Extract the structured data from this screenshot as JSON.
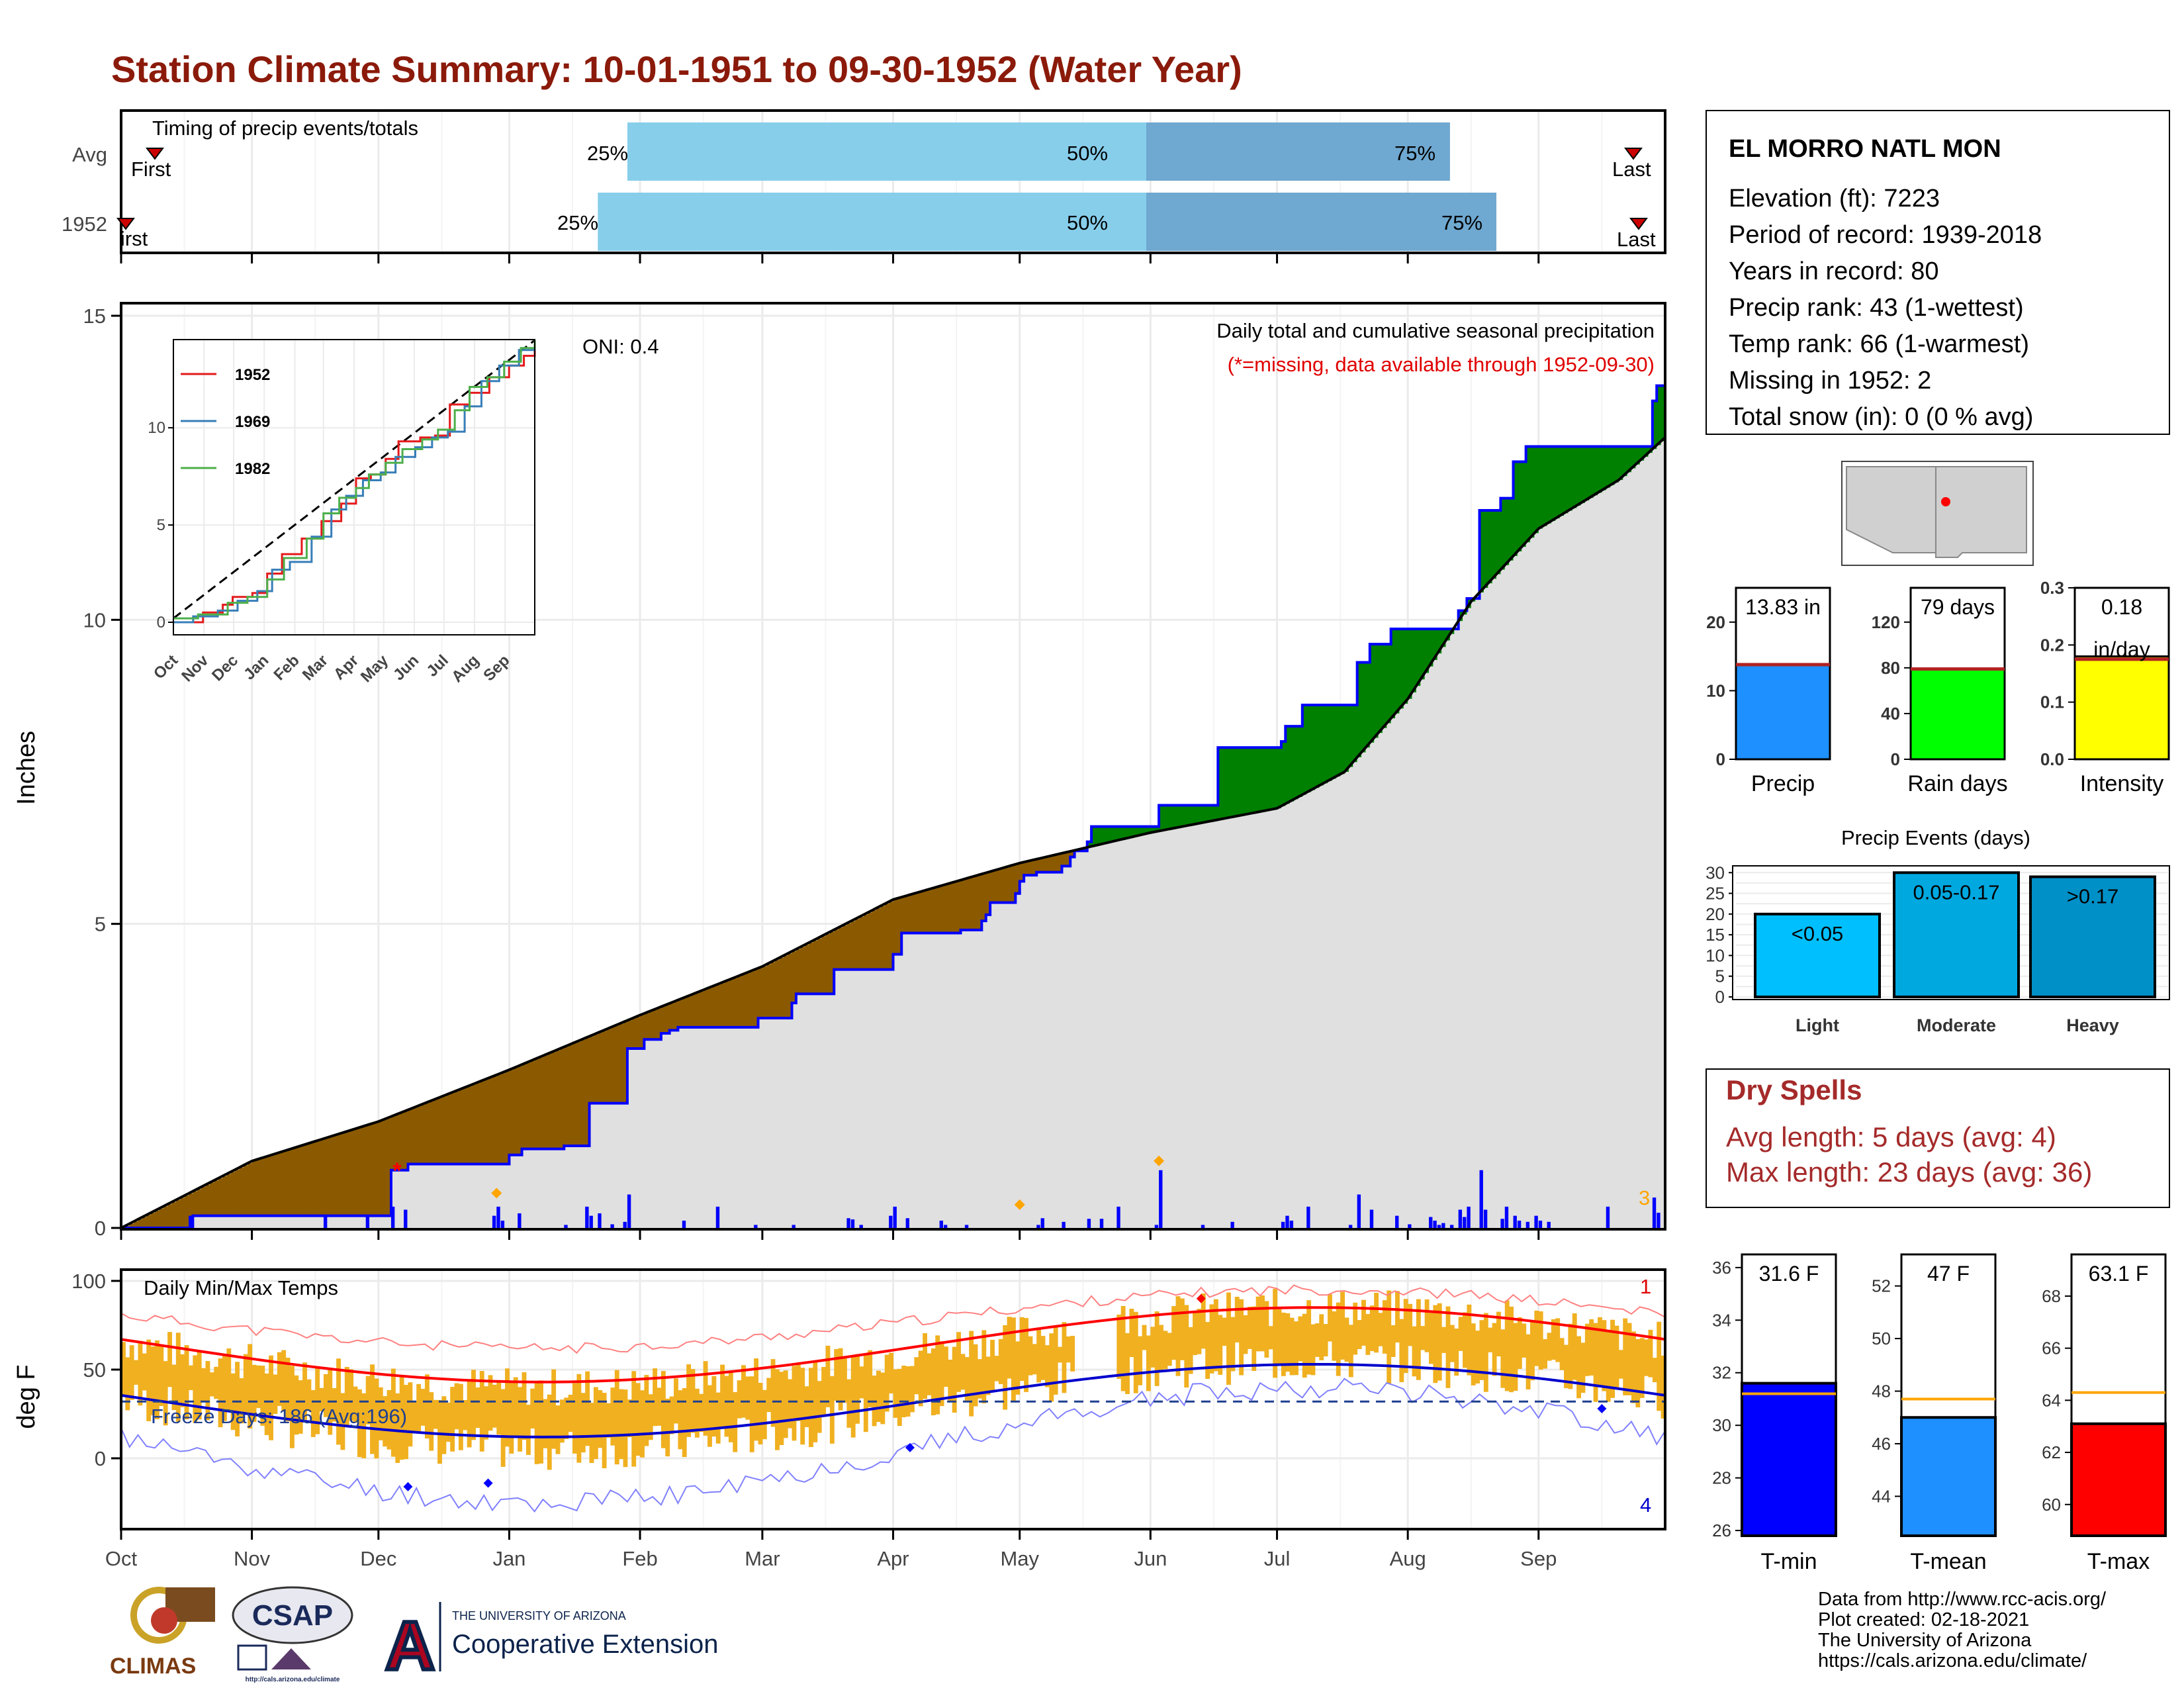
{
  "title": "Station Climate Summary: 10-01-1951 to 09-30-1952 (Water Year)",
  "colors": {
    "title": "#8b1a0a",
    "station_red": "#a52a2a",
    "q_light": "#87ceeb",
    "q_dark": "#6fa8d0",
    "above_normal": "#008000",
    "below_normal": "#8b5a00",
    "cumulative_fill": "#e0e0e0",
    "daily_bar": "#0000ff",
    "temp_bar": "#f0b020",
    "tmax_avg": "#ff0000",
    "tmin_avg": "#0000cd"
  },
  "timing": {
    "label": "Timing of precip events/totals",
    "rows": [
      {
        "name": "Avg",
        "first": "First",
        "last": "Last",
        "p25": "25%",
        "p50": "50%",
        "p75": "75%",
        "p25_day": 120,
        "p50_day": 243,
        "p75_day": 315,
        "first_day": 8,
        "last_day": 360
      },
      {
        "name": "1952",
        "first": "First",
        "last": "Last",
        "p25": "25%",
        "p50": "50%",
        "p75": "75%",
        "p25_day": 113,
        "p50_day": 243,
        "p75_day": 326,
        "first_day": 0,
        "last_day": 362
      }
    ]
  },
  "precip": {
    "ylabel": "Inches",
    "note": "Daily total and cumulative seasonal precipitation",
    "missing_note": "(*=missing, data available through 1952-09-30)",
    "oni": "ONI: 0.4",
    "count_label": "3",
    "yticks": [
      "0",
      "5",
      "10",
      "15"
    ],
    "ylim": [
      0,
      15
    ],
    "inset": {
      "series": [
        {
          "name": "1952",
          "color": "#e41a1c"
        },
        {
          "name": "1969",
          "color": "#377eb8"
        },
        {
          "name": "1982",
          "color": "#4daf4a"
        }
      ],
      "yticks": [
        "0",
        "5",
        "10"
      ],
      "xticks": [
        "Oct",
        "Nov",
        "Dec",
        "Jan",
        "Feb",
        "Mar",
        "Apr",
        "May",
        "Jun",
        "Jul",
        "Aug",
        "Sep"
      ]
    }
  },
  "months": [
    "Oct",
    "Nov",
    "Dec",
    "Jan",
    "Feb",
    "Mar",
    "Apr",
    "May",
    "Jun",
    "Jul",
    "Aug",
    "Sep"
  ],
  "temps": {
    "ylabel": "deg F",
    "label": "Daily Min/Max Temps",
    "freeze": "Freeze Days: 186 (Avg:196)",
    "max_count": "1",
    "min_count": "4",
    "yticks": [
      "0",
      "50",
      "100"
    ]
  },
  "station": {
    "name": "EL MORRO NATL MON",
    "lines": [
      "Elevation (ft): 7223",
      "Period of record: 1939-2018",
      "Years in record: 80",
      "Precip rank: 43 (1-wettest)",
      "Temp rank: 66 (1-warmest)",
      "Missing in 1952: 2",
      "Total snow (in): 0 (0 % avg)"
    ]
  },
  "summary_bars": [
    {
      "label": "Precip",
      "value_text": "13.83 in",
      "value": 13.83,
      "avg": 13.8,
      "ymax": 25,
      "ticks": [
        "0",
        "10",
        "20"
      ],
      "tick_values": [
        0,
        10,
        20
      ],
      "color": "#1e90ff"
    },
    {
      "label": "Rain days",
      "value_text": "79 days",
      "value": 79,
      "avg": 79,
      "ymax": 150,
      "ticks": [
        "0",
        "40",
        "80",
        "120"
      ],
      "tick_values": [
        0,
        40,
        80,
        120
      ],
      "color": "#00ff00"
    },
    {
      "label": "Intensity",
      "value_text": "0.18",
      "value_text2": "in/day",
      "value": 0.18,
      "avg": 0.175,
      "ymax": 0.3,
      "ticks": [
        "0.0",
        "0.1",
        "0.2",
        "0.3"
      ],
      "tick_values": [
        0,
        0.1,
        0.2,
        0.3
      ],
      "color": "#ffff00"
    }
  ],
  "events": {
    "title": "Precip Events (days)",
    "bars": [
      {
        "label": "Light",
        "value_label": "<0.05",
        "value": 20,
        "color": "#00bfff"
      },
      {
        "label": "Moderate",
        "value_label": "0.05-0.17",
        "value": 30,
        "color": "#00a8e0"
      },
      {
        "label": "Heavy",
        "value_label": ">0.17",
        "value": 29,
        "color": "#0090c8"
      }
    ],
    "yticks": [
      "0",
      "5",
      "10",
      "15",
      "20",
      "25",
      "30"
    ]
  },
  "dry_spells": {
    "title": "Dry Spells",
    "avg": "Avg length: 5 days (avg: 4)",
    "max": "Max length: 23 days (avg: 36)"
  },
  "temp_bars": [
    {
      "label": "T-min",
      "value_text": "31.6 F",
      "value": 31.6,
      "avg": 31.2,
      "ymin": 25.8,
      "ymax": 36.5,
      "ticks": [
        "26",
        "28",
        "30",
        "32",
        "34",
        "36"
      ],
      "tick_values": [
        26,
        28,
        30,
        32,
        34,
        36
      ],
      "color": "#0000ff"
    },
    {
      "label": "T-mean",
      "value_text": "47 F",
      "value": 47,
      "avg": 47.7,
      "ymin": 42.5,
      "ymax": 53.2,
      "ticks": [
        "44",
        "46",
        "48",
        "50",
        "52"
      ],
      "tick_values": [
        44,
        46,
        48,
        50,
        52
      ],
      "color": "#1e90ff"
    },
    {
      "label": "T-max",
      "value_text": "63.1 F",
      "value": 63.1,
      "avg": 64.3,
      "ymin": 58.8,
      "ymax": 69.6,
      "ticks": [
        "60",
        "62",
        "64",
        "66",
        "68"
      ],
      "tick_values": [
        60,
        62,
        64,
        66,
        68
      ],
      "color": "#ff0000"
    }
  ],
  "footer": {
    "lines": [
      "Data from http://www.rcc-acis.org/",
      "Plot created: 02-18-2021",
      "The University of Arizona",
      "https://cals.arizona.edu/climate/"
    ],
    "climas": "CLIMAS",
    "csap": "CSAP",
    "csap_url": "http://cals.arizona.edu/climate",
    "ua_small": "THE UNIVERSITY OF ARIZONA",
    "ua_big": "Cooperative Extension",
    "ua_letter": "A"
  }
}
